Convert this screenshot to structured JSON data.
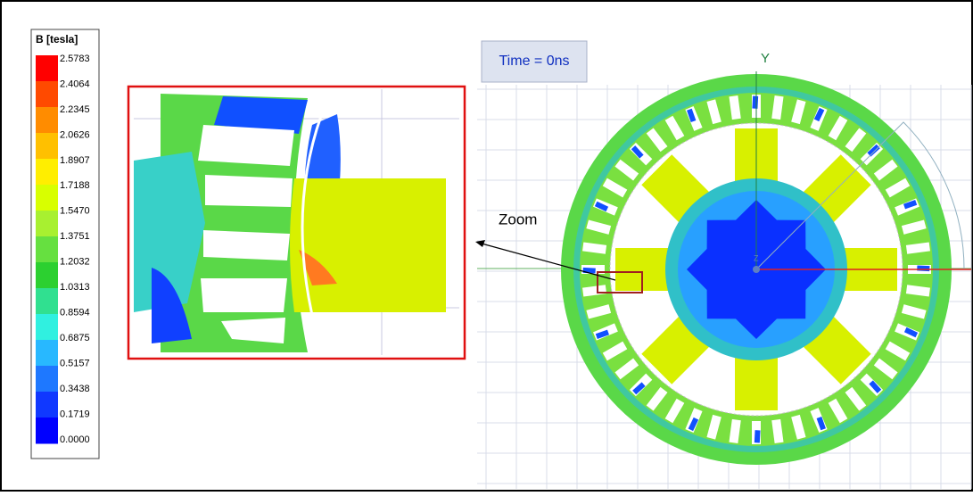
{
  "legend": {
    "title": "B [tesla]",
    "labels": [
      "2.5783",
      "2.4064",
      "2.2345",
      "2.0626",
      "1.8907",
      "1.7188",
      "1.5470",
      "1.3751",
      "1.2032",
      "1.0313",
      "0.8594",
      "0.6875",
      "0.5157",
      "0.3438",
      "0.1719",
      "0.0000"
    ],
    "colors": [
      "#ff0000",
      "#ff4a00",
      "#ff8c00",
      "#ffc000",
      "#ffee00",
      "#d8ff00",
      "#a8f030",
      "#66e040",
      "#2cd030",
      "#30e090",
      "#30f0e0",
      "#28b8ff",
      "#1e78ff",
      "#1038ff",
      "#0000ff"
    ]
  },
  "viewer": {
    "time": "Time = 0ns",
    "axis_y": "Y",
    "axis_z": "Z"
  },
  "annotation": {
    "zoom": "Zoom"
  }
}
